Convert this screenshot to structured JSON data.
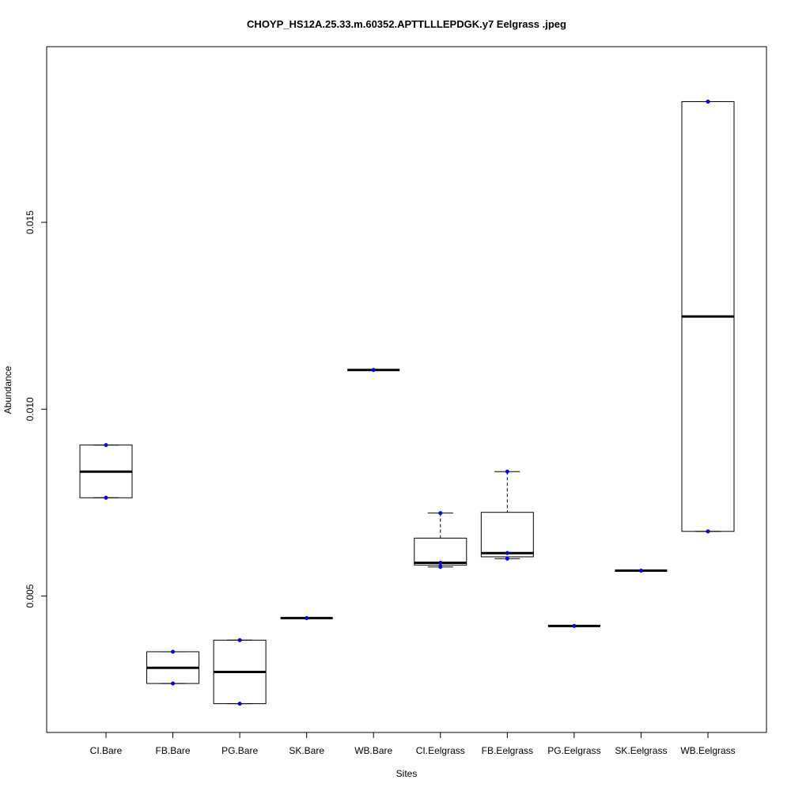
{
  "chart_data": {
    "type": "boxplot",
    "title": "CHOYP_HS12A.25.33.m.60352.APTTLLLEPDGK.y7 Eelgrass .jpeg",
    "xlabel": "Sites",
    "ylabel": "Abundance",
    "ylim": [
      0.00135,
      0.0197
    ],
    "yticks": [
      0.005,
      0.01,
      0.015
    ],
    "ytick_labels": [
      "0.005",
      "0.010",
      "0.015"
    ],
    "grid": false,
    "colors": {
      "box_stroke": "#000000",
      "median": "#000000",
      "point": "#0000ff",
      "whisker": "#000000"
    },
    "categories": [
      "CI.Bare",
      "FB.Bare",
      "PG.Bare",
      "SK.Bare",
      "WB.Bare",
      "CI.Eelgrass",
      "FB.Eelgrass",
      "PG.Eelgrass",
      "SK.Eelgrass",
      "WB.Eelgrass"
    ],
    "boxes": [
      {
        "q1": 0.00763,
        "median": 0.00833,
        "q3": 0.00904,
        "whisker_low": 0.00763,
        "whisker_high": 0.00904,
        "points": [
          0.00763,
          0.00904
        ]
      },
      {
        "q1": 0.00266,
        "median": 0.00308,
        "q3": 0.00351,
        "whisker_low": 0.00266,
        "whisker_high": 0.00351,
        "points": [
          0.00266,
          0.00351
        ]
      },
      {
        "q1": 0.00212,
        "median": 0.00297,
        "q3": 0.00382,
        "whisker_low": 0.00212,
        "whisker_high": 0.00382,
        "points": [
          0.00212,
          0.00382
        ]
      },
      {
        "q1": 0.00441,
        "median": 0.00441,
        "q3": 0.00441,
        "whisker_low": 0.00441,
        "whisker_high": 0.00441,
        "points": [
          0.00441
        ]
      },
      {
        "q1": 0.01105,
        "median": 0.01105,
        "q3": 0.01105,
        "whisker_low": 0.01105,
        "whisker_high": 0.01105,
        "points": [
          0.01105
        ]
      },
      {
        "q1": 0.00583,
        "median": 0.00589,
        "q3": 0.00655,
        "whisker_low": 0.00578,
        "whisker_high": 0.00722,
        "points": [
          0.00722,
          0.00589,
          0.00578
        ]
      },
      {
        "q1": 0.00605,
        "median": 0.00615,
        "q3": 0.00724,
        "whisker_low": 0.006,
        "whisker_high": 0.00833,
        "points": [
          0.00833,
          0.00615,
          0.006
        ]
      },
      {
        "q1": 0.0042,
        "median": 0.0042,
        "q3": 0.0042,
        "whisker_low": 0.0042,
        "whisker_high": 0.0042,
        "points": [
          0.0042
        ]
      },
      {
        "q1": 0.00568,
        "median": 0.00568,
        "q3": 0.00568,
        "whisker_low": 0.00568,
        "whisker_high": 0.00568,
        "points": [
          0.00568
        ]
      },
      {
        "q1": 0.00673,
        "median": 0.01248,
        "q3": 0.01823,
        "whisker_low": 0.00673,
        "whisker_high": 0.01823,
        "points": [
          0.01823,
          0.00673
        ]
      }
    ]
  }
}
